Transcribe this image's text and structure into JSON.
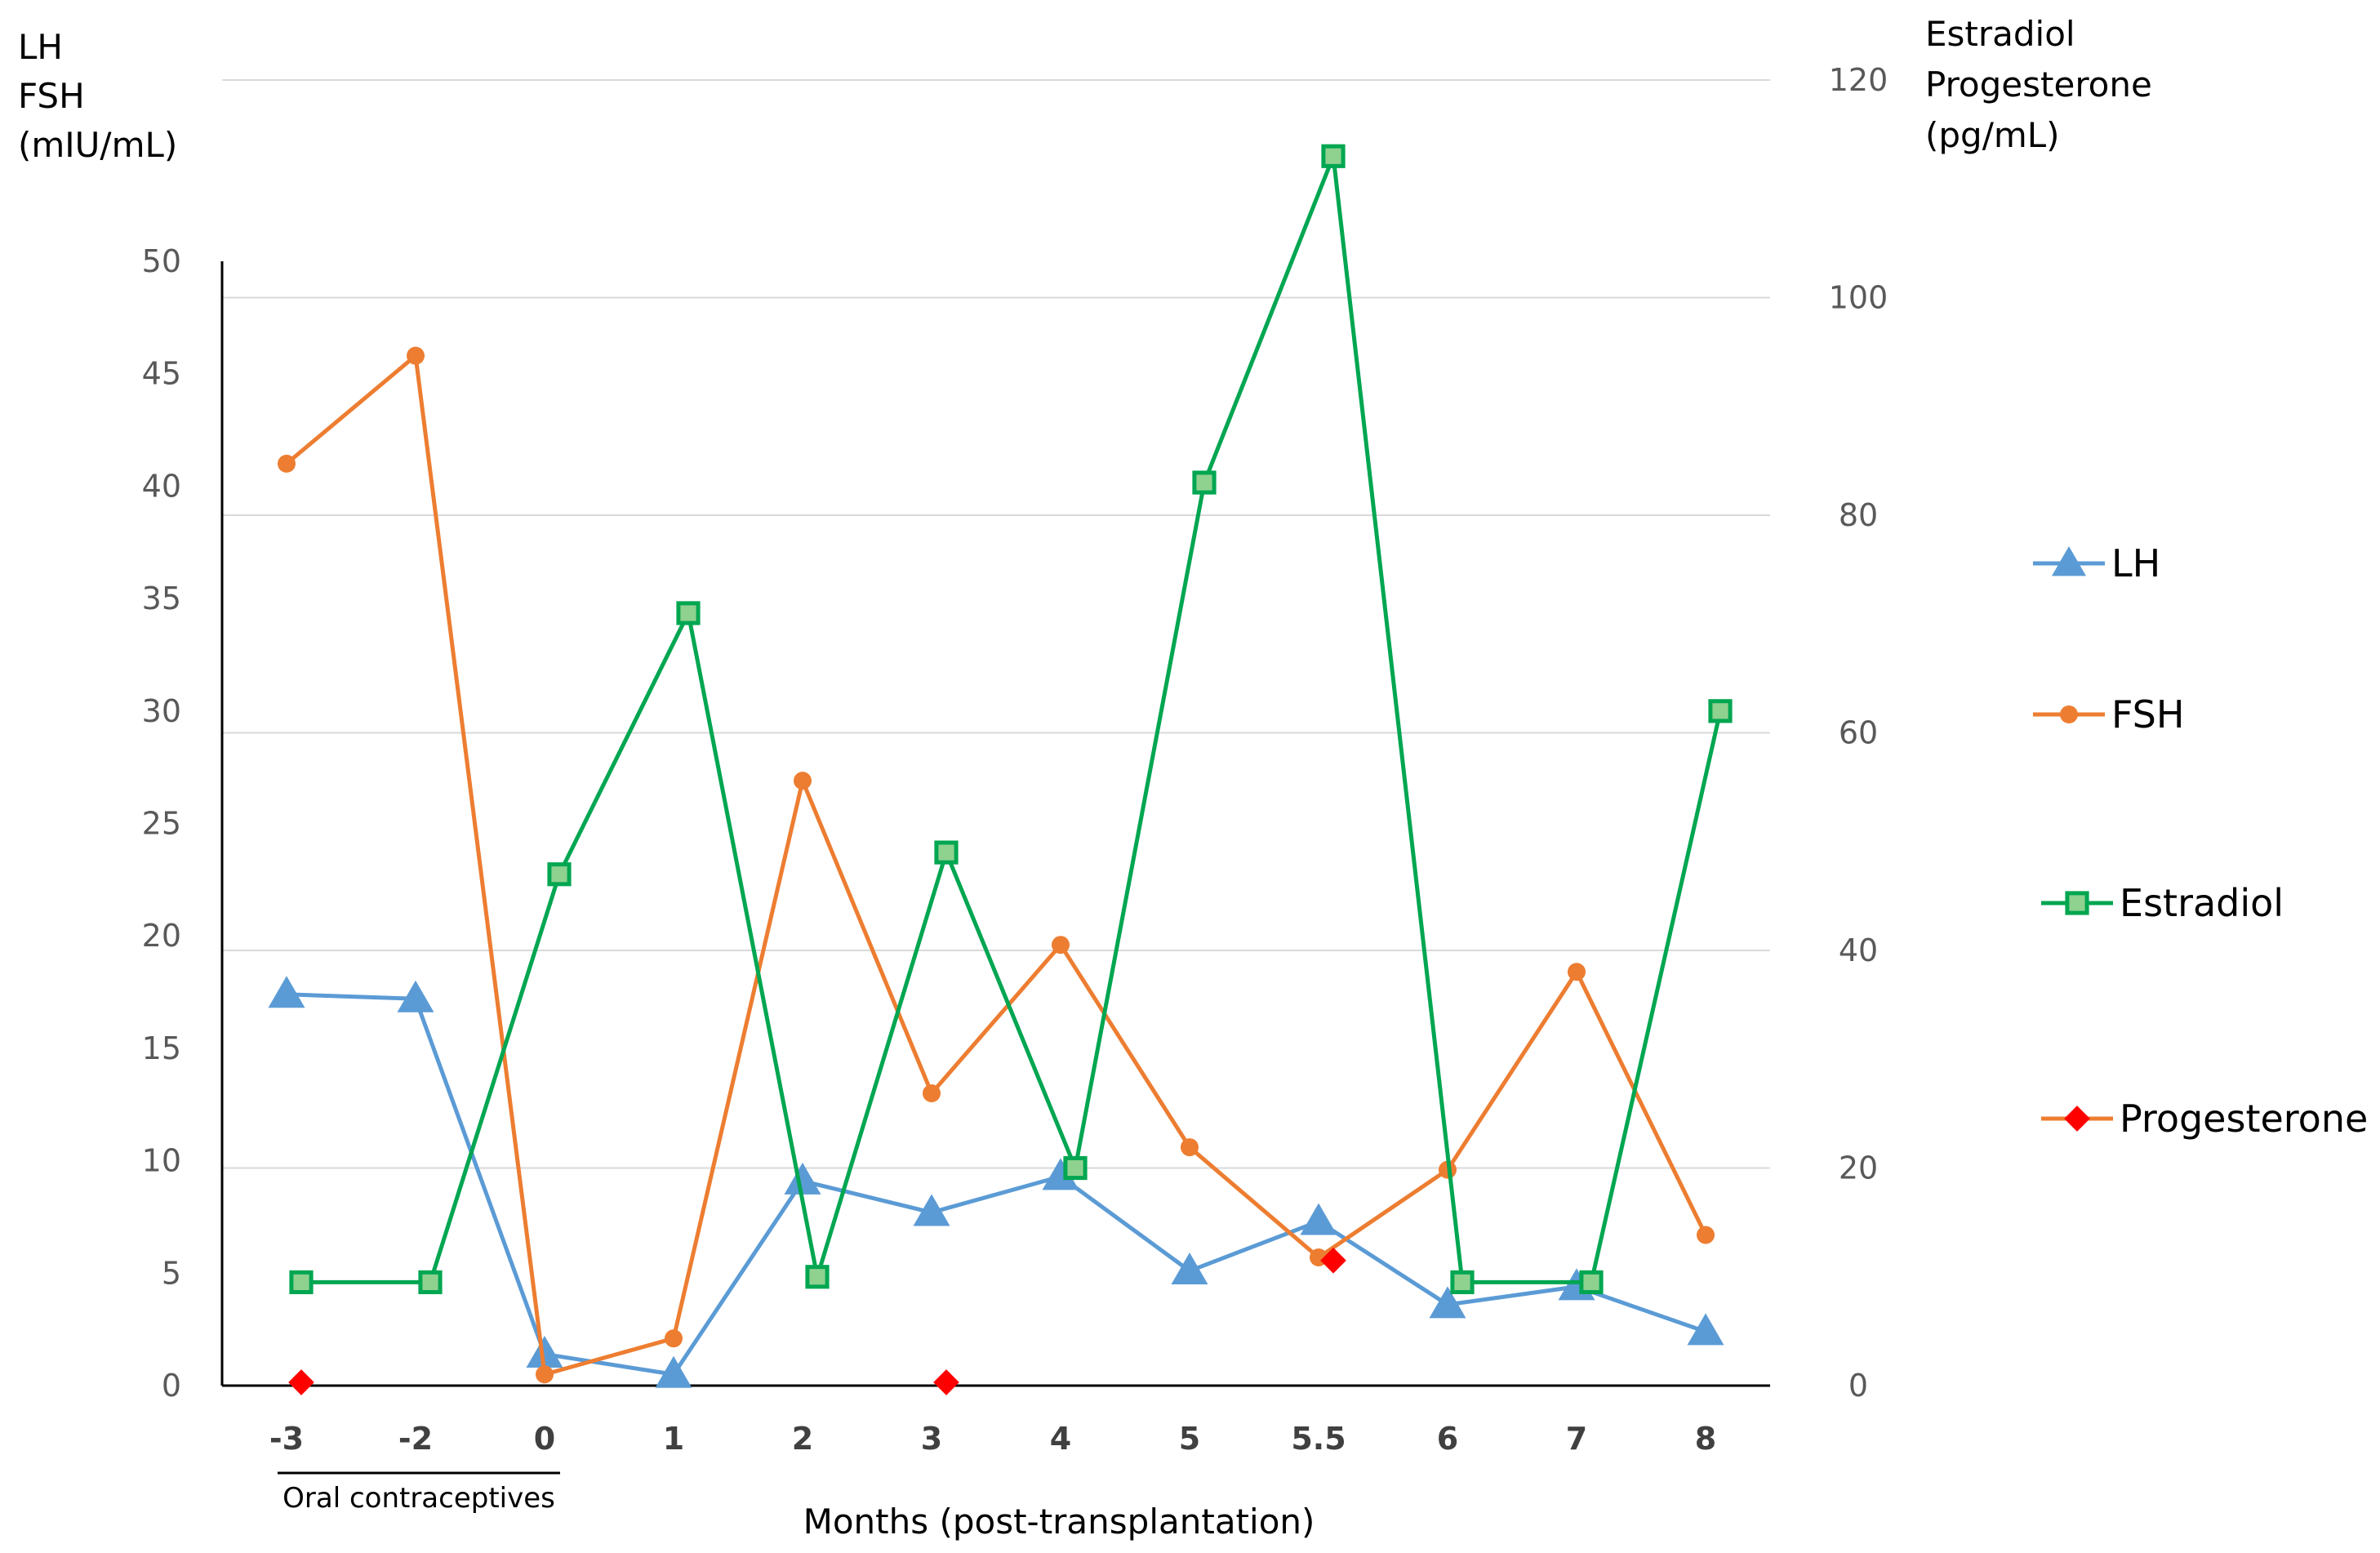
{
  "chart_data": {
    "type": "line",
    "xlabel": "Months (post-transplantation)",
    "categories": [
      "-3",
      "-2",
      "0",
      "1",
      "2",
      "3",
      "4",
      "5",
      "5.5",
      "6",
      "7",
      "8"
    ],
    "left_axis": {
      "label_lines": [
        "LH",
        "FSH",
        "(mIU/mL)"
      ],
      "ylim": [
        0,
        50
      ],
      "ticks": [
        0,
        5,
        10,
        15,
        20,
        25,
        30,
        35,
        40,
        45,
        50
      ]
    },
    "right_axis": {
      "label_lines": [
        "Estradiol",
        "Progesterone",
        "(pg/mL)"
      ],
      "ylim": [
        0,
        120
      ],
      "ticks": [
        0,
        20,
        40,
        60,
        80,
        100,
        120
      ]
    },
    "grid": true,
    "legend_position": "right",
    "annotation": "Oral contraceptives",
    "series": [
      {
        "name": "LH",
        "axis": "left",
        "color": "#5b9bd5",
        "marker": "triangle",
        "values": [
          17.4,
          17.2,
          1.4,
          0.5,
          9.1,
          7.7,
          9.3,
          5.1,
          7.3,
          3.6,
          4.4,
          2.4
        ]
      },
      {
        "name": "FSH",
        "axis": "left",
        "color": "#ed7d31",
        "marker": "circle",
        "values": [
          41.0,
          45.8,
          0.5,
          2.1,
          26.9,
          13.0,
          19.6,
          10.6,
          5.7,
          9.6,
          18.4,
          6.7
        ]
      },
      {
        "name": "Estradiol",
        "axis": "right",
        "color": "#00a651",
        "marker": "square",
        "values": [
          9.5,
          9.5,
          47,
          71,
          10,
          49,
          20,
          83,
          113,
          9.5,
          9.5,
          62
        ]
      },
      {
        "name": "Progesterone",
        "axis": "right",
        "color": "#ff0000",
        "marker": "diamond",
        "values": [
          0.3,
          null,
          null,
          null,
          null,
          0.3,
          null,
          null,
          11.5,
          null,
          null,
          null
        ]
      }
    ]
  }
}
